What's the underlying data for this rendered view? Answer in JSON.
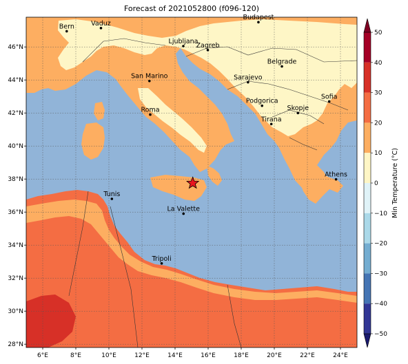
{
  "title": "Forecast of 2021052800 (f096-120)",
  "map": {
    "lon_range": [
      5,
      25
    ],
    "lat_range": [
      27.8,
      47.8
    ],
    "lon_ticks": [
      {
        "value": 6,
        "label": "6°E"
      },
      {
        "value": 8,
        "label": "8°E"
      },
      {
        "value": 10,
        "label": "10°E"
      },
      {
        "value": 12,
        "label": "12°E"
      },
      {
        "value": 14,
        "label": "14°E"
      },
      {
        "value": 16,
        "label": "16°E"
      },
      {
        "value": 18,
        "label": "18°E"
      },
      {
        "value": 20,
        "label": "20°E"
      },
      {
        "value": 22,
        "label": "22°E"
      },
      {
        "value": 24,
        "label": "24°E"
      }
    ],
    "lat_ticks": [
      {
        "value": 28,
        "label": "28°N"
      },
      {
        "value": 30,
        "label": "30°N"
      },
      {
        "value": 32,
        "label": "32°N"
      },
      {
        "value": 34,
        "label": "34°N"
      },
      {
        "value": 36,
        "label": "36°N"
      },
      {
        "value": 38,
        "label": "38°N"
      },
      {
        "value": 40,
        "label": "40°N"
      },
      {
        "value": 42,
        "label": "42°N"
      },
      {
        "value": 44,
        "label": "44°N"
      },
      {
        "value": 46,
        "label": "46°N"
      }
    ],
    "grid": true,
    "sea_color": "#91b4d8",
    "cities": [
      {
        "name": "Bern",
        "lon": 7.45,
        "lat": 46.95
      },
      {
        "name": "Vaduz",
        "lon": 9.52,
        "lat": 47.14
      },
      {
        "name": "Budapest",
        "lon": 19.04,
        "lat": 47.5
      },
      {
        "name": "Ljubljana",
        "lon": 14.5,
        "lat": 46.05
      },
      {
        "name": "Zagreb",
        "lon": 15.98,
        "lat": 45.81
      },
      {
        "name": "Belgrade",
        "lon": 20.46,
        "lat": 44.82
      },
      {
        "name": "San Marino",
        "lon": 12.45,
        "lat": 43.94
      },
      {
        "name": "Sarajevo",
        "lon": 18.41,
        "lat": 43.86
      },
      {
        "name": "Sofia",
        "lon": 23.32,
        "lat": 42.7
      },
      {
        "name": "Podgorica",
        "lon": 19.26,
        "lat": 42.44
      },
      {
        "name": "Skopje",
        "lon": 21.43,
        "lat": 42.0
      },
      {
        "name": "Roma",
        "lon": 12.5,
        "lat": 41.9
      },
      {
        "name": "Tirana",
        "lon": 19.82,
        "lat": 41.33
      },
      {
        "name": "Athens",
        "lon": 23.73,
        "lat": 37.98
      },
      {
        "name": "Tunis",
        "lon": 10.18,
        "lat": 36.8
      },
      {
        "name": "La Valette",
        "lon": 14.51,
        "lat": 35.9
      },
      {
        "name": "Tripoli",
        "lon": 13.19,
        "lat": 32.89
      }
    ],
    "marker": {
      "lon": 15.07,
      "lat": 37.75,
      "color": "#e8141e"
    }
  },
  "colorbar": {
    "label": "Min Temperature (°C)",
    "range": [
      -50,
      50
    ],
    "ticks": [
      50,
      40,
      30,
      20,
      10,
      0,
      -10,
      -20,
      -30,
      -40,
      -50
    ],
    "tick_labels": [
      "50",
      "40",
      "30",
      "20",
      "10",
      "0",
      "−10",
      "−20",
      "−30",
      "−40",
      "−50"
    ],
    "bins": [
      {
        "from": 40,
        "to": 50,
        "color": "#a50026"
      },
      {
        "from": 30,
        "to": 40,
        "color": "#d73027"
      },
      {
        "from": 20,
        "to": 30,
        "color": "#f46d43"
      },
      {
        "from": 10,
        "to": 20,
        "color": "#fdae61"
      },
      {
        "from": 0,
        "to": 10,
        "color": "#fef6c6"
      },
      {
        "from": -10,
        "to": 0,
        "color": "#e0f3f8"
      },
      {
        "from": -20,
        "to": -10,
        "color": "#abd9e9"
      },
      {
        "from": -30,
        "to": -20,
        "color": "#74add1"
      },
      {
        "from": -40,
        "to": -30,
        "color": "#4575b4"
      },
      {
        "from": -50,
        "to": -40,
        "color": "#313695"
      }
    ],
    "over_color": "#7f0022",
    "under_color": "#1a1a6e"
  }
}
